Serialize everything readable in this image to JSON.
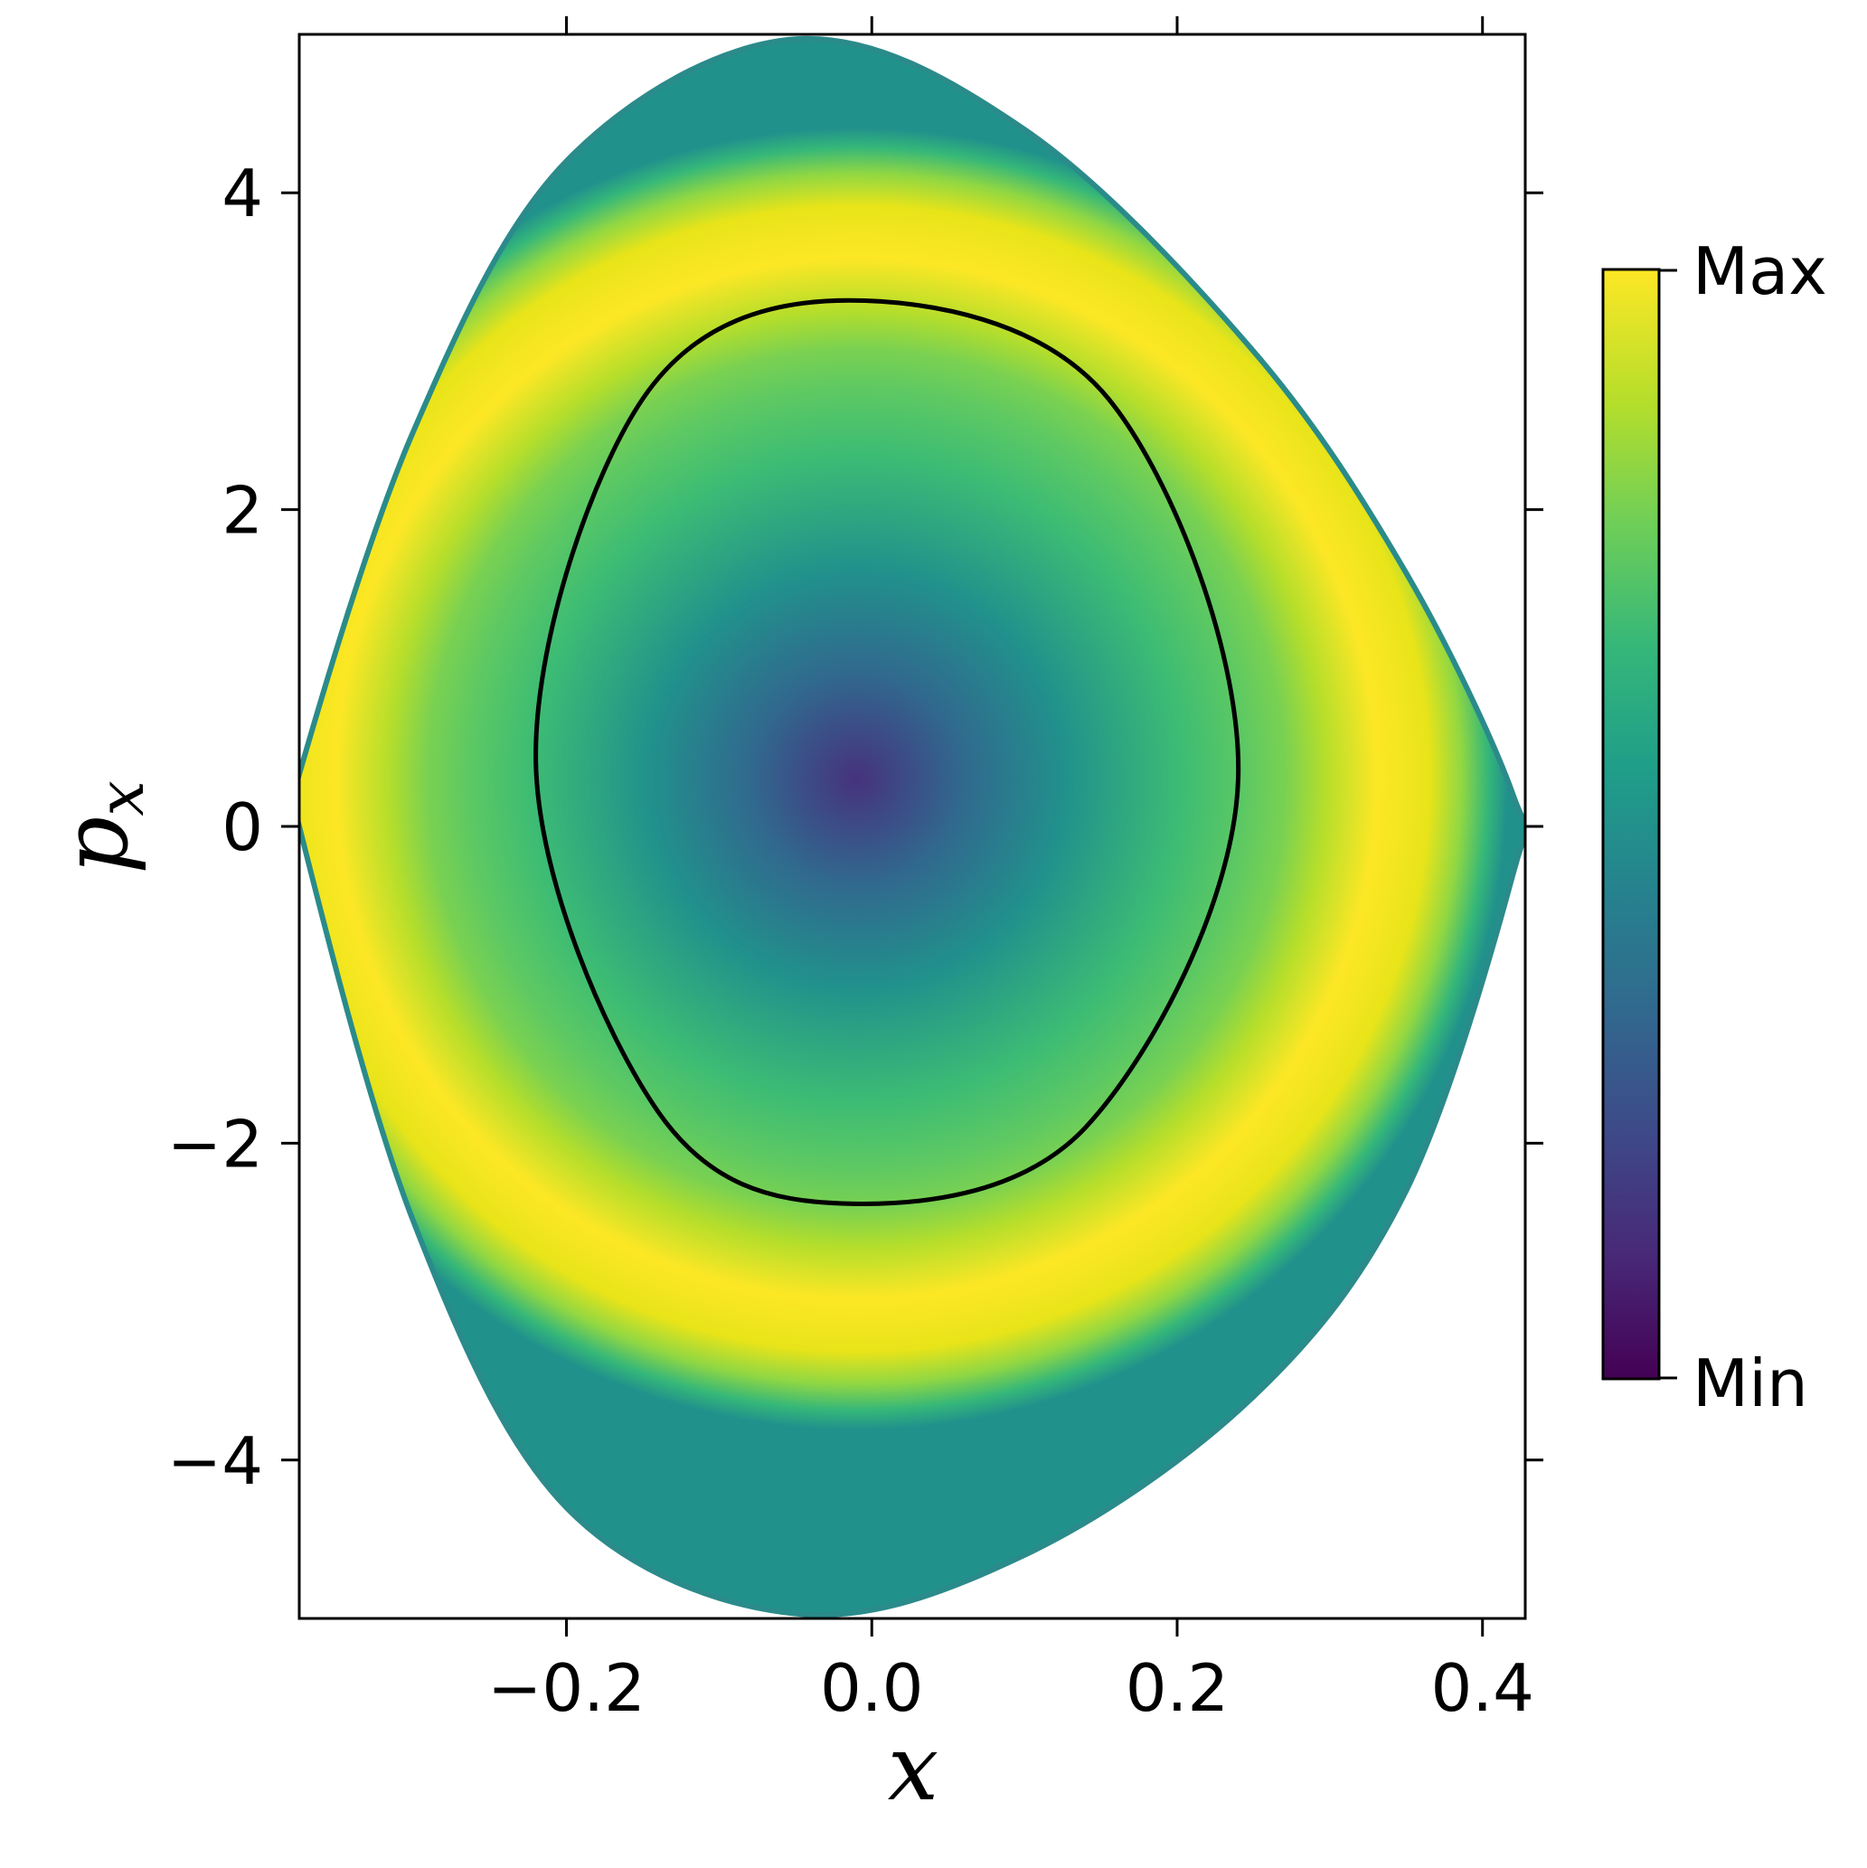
{
  "chart_data": {
    "type": "heatmap",
    "title": "",
    "xlabel": "x",
    "ylabel": "p",
    "ylabel_sub": "x",
    "xlim": [
      -0.375,
      0.428
    ],
    "ylim": [
      -5.0,
      5.0
    ],
    "xticks": [
      {
        "value": -0.2,
        "label": "−0.2"
      },
      {
        "value": 0.0,
        "label": "0.0"
      },
      {
        "value": 0.2,
        "label": "0.2"
      },
      {
        "value": 0.4,
        "label": "0.4"
      }
    ],
    "yticks": [
      {
        "value": 4,
        "label": "4"
      },
      {
        "value": 2,
        "label": "2"
      },
      {
        "value": 0,
        "label": "0"
      },
      {
        "value": -2,
        "label": "−2"
      },
      {
        "value": -4,
        "label": "−4"
      }
    ],
    "grid": false,
    "colormap": "viridis",
    "colorbar": {
      "max_label": "Max",
      "min_label": "Min"
    },
    "region_boundary": {
      "top": [
        [
          -0.375,
          0.33
        ],
        [
          -0.3,
          2.5
        ],
        [
          -0.2,
          4.2
        ],
        [
          -0.05,
          4.97
        ],
        [
          0.1,
          4.4
        ],
        [
          0.25,
          3.0
        ],
        [
          0.35,
          1.6
        ],
        [
          0.42,
          0.2
        ]
      ],
      "bottom": [
        [
          -0.375,
          0.0
        ],
        [
          -0.3,
          -2.5
        ],
        [
          -0.2,
          -4.3
        ],
        [
          -0.05,
          -4.97
        ],
        [
          0.1,
          -4.6
        ],
        [
          0.25,
          -3.6
        ],
        [
          0.35,
          -2.3
        ],
        [
          0.42,
          -0.3
        ]
      ]
    },
    "separatrix": [
      {
        "x": -0.015,
        "p": 3.32
      },
      {
        "x": 0.155,
        "p": 2.7
      },
      {
        "x": 0.24,
        "p": 0.3
      },
      {
        "x": 0.14,
        "p": -1.9
      },
      {
        "x": -0.02,
        "p": -2.38
      },
      {
        "x": -0.14,
        "p": -1.8
      },
      {
        "x": -0.22,
        "p": 0.4
      },
      {
        "x": -0.15,
        "p": 2.7
      }
    ],
    "minimum_point": {
      "x": -0.01,
      "p": 0.3
    }
  },
  "colors": {
    "viridis": [
      "#440154",
      "#482878",
      "#3e4989",
      "#31688e",
      "#26828e",
      "#1f9e89",
      "#35b779",
      "#6ece58",
      "#b5de2b",
      "#fde725"
    ],
    "frame": "#000000",
    "separatrix": "#000000"
  }
}
